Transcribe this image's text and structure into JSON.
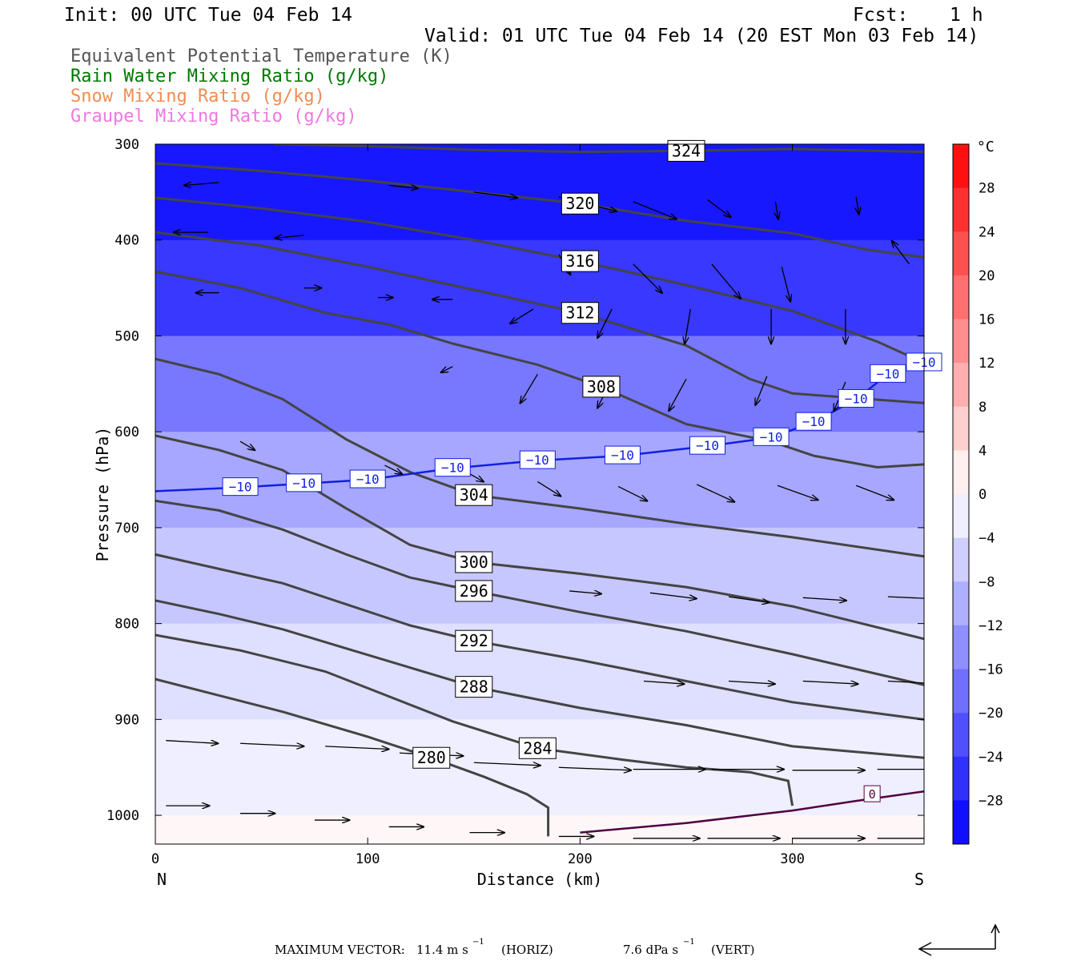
{
  "header": {
    "init": "Init: 00 UTC Tue 04 Feb 14",
    "fcst_label": "Fcst:",
    "fcst_value": "1 h",
    "valid": "Valid: 01 UTC Tue 04 Feb 14 (20 EST Mon 03 Feb 14)"
  },
  "legend": {
    "items": [
      {
        "label": "Equivalent Potential Temperature (K)",
        "color": "#555555"
      },
      {
        "label": "Rain Water Mixing Ratio (g/kg)",
        "color": "#007a00"
      },
      {
        "label": "Snow Mixing Ratio (g/kg)",
        "color": "#f08c50"
      },
      {
        "label": "Graupel Mixing Ratio (g/kg)",
        "color": "#f078e0"
      }
    ]
  },
  "chart_data": {
    "type": "cross-section",
    "xlabel": "Distance (km)",
    "ylabel": "Pressure (hPa)",
    "xlim": [
      0,
      362
    ],
    "ylim": [
      300,
      1030
    ],
    "x_ticks": [
      0,
      100,
      200,
      300
    ],
    "y_ticks": [
      300,
      400,
      500,
      600,
      700,
      800,
      900,
      1000
    ],
    "x_end_labels": {
      "left": "N",
      "right": "S"
    },
    "colorbar": {
      "unit": "°C",
      "tick_labels": [
        "28",
        "24",
        "20",
        "16",
        "12",
        "8",
        "4",
        "0",
        "−4",
        "−8",
        "−12",
        "−16",
        "−20",
        "−24",
        "−28"
      ],
      "range": [
        -32,
        32
      ],
      "step": 4
    },
    "theta_e_contours": [
      {
        "label": "324",
        "points": [
          [
            56,
            300
          ],
          [
            100,
            302
          ],
          [
            150,
            306
          ],
          [
            200,
            308
          ],
          [
            250,
            307
          ],
          [
            300,
            305
          ],
          [
            340,
            307
          ],
          [
            362,
            308
          ]
        ]
      },
      {
        "label": "320",
        "points": [
          [
            0,
            320
          ],
          [
            50,
            328
          ],
          [
            100,
            338
          ],
          [
            150,
            350
          ],
          [
            200,
            362
          ],
          [
            250,
            380
          ],
          [
            300,
            393
          ],
          [
            335,
            410
          ],
          [
            362,
            418
          ]
        ]
      },
      {
        "label": "316",
        "points": [
          [
            0,
            356
          ],
          [
            50,
            367
          ],
          [
            100,
            381
          ],
          [
            150,
            400
          ],
          [
            200,
            422
          ],
          [
            250,
            447
          ],
          [
            300,
            474
          ],
          [
            340,
            506
          ],
          [
            362,
            528
          ]
        ]
      },
      {
        "label": "312",
        "points": [
          [
            0,
            392
          ],
          [
            50,
            406
          ],
          [
            100,
            428
          ],
          [
            150,
            452
          ],
          [
            200,
            476
          ],
          [
            250,
            510
          ],
          [
            280,
            545
          ],
          [
            300,
            560
          ],
          [
            362,
            570
          ]
        ]
      },
      {
        "label": "308",
        "points": [
          [
            0,
            433
          ],
          [
            40,
            450
          ],
          [
            80,
            476
          ],
          [
            110,
            488
          ],
          [
            140,
            508
          ],
          [
            180,
            530
          ],
          [
            210,
            553
          ],
          [
            250,
            592
          ],
          [
            290,
            610
          ],
          [
            310,
            625
          ],
          [
            340,
            637
          ],
          [
            362,
            634
          ]
        ]
      },
      {
        "label": "304",
        "points": [
          [
            0,
            524
          ],
          [
            30,
            540
          ],
          [
            60,
            566
          ],
          [
            90,
            608
          ],
          [
            120,
            642
          ],
          [
            150,
            666
          ],
          [
            200,
            680
          ],
          [
            250,
            696
          ],
          [
            300,
            710
          ],
          [
            362,
            730
          ]
        ]
      },
      {
        "label": "300",
        "points": [
          [
            0,
            604
          ],
          [
            30,
            619
          ],
          [
            60,
            640
          ],
          [
            90,
            680
          ],
          [
            120,
            718
          ],
          [
            150,
            736
          ],
          [
            200,
            748
          ],
          [
            250,
            762
          ],
          [
            300,
            782
          ],
          [
            362,
            816
          ]
        ]
      },
      {
        "label": "296",
        "points": [
          [
            0,
            672
          ],
          [
            30,
            682
          ],
          [
            60,
            702
          ],
          [
            90,
            728
          ],
          [
            120,
            752
          ],
          [
            150,
            766
          ],
          [
            200,
            788
          ],
          [
            250,
            808
          ],
          [
            300,
            832
          ],
          [
            362,
            864
          ]
        ]
      },
      {
        "label": "292",
        "points": [
          [
            0,
            728
          ],
          [
            30,
            743
          ],
          [
            60,
            758
          ],
          [
            90,
            780
          ],
          [
            120,
            802
          ],
          [
            150,
            818
          ],
          [
            200,
            838
          ],
          [
            250,
            860
          ],
          [
            300,
            882
          ],
          [
            362,
            900
          ]
        ]
      },
      {
        "label": "288",
        "points": [
          [
            0,
            776
          ],
          [
            30,
            790
          ],
          [
            60,
            806
          ],
          [
            90,
            826
          ],
          [
            120,
            846
          ],
          [
            150,
            866
          ],
          [
            200,
            888
          ],
          [
            250,
            906
          ],
          [
            300,
            928
          ],
          [
            362,
            940
          ]
        ]
      },
      {
        "label": "284",
        "points": [
          [
            0,
            812
          ],
          [
            40,
            828
          ],
          [
            80,
            850
          ],
          [
            110,
            876
          ],
          [
            140,
            902
          ],
          [
            180,
            930
          ],
          [
            220,
            942
          ],
          [
            250,
            950
          ],
          [
            280,
            955
          ],
          [
            298,
            964
          ],
          [
            300,
            990
          ]
        ]
      },
      {
        "label": "280",
        "points": [
          [
            0,
            858
          ],
          [
            30,
            875
          ],
          [
            60,
            892
          ],
          [
            100,
            918
          ],
          [
            130,
            940
          ],
          [
            155,
            960
          ],
          [
            175,
            978
          ],
          [
            185,
            992
          ],
          [
            185,
            1022
          ]
        ]
      }
    ],
    "isotherm_minus10": {
      "label": "−10",
      "points": [
        [
          0,
          662
        ],
        [
          40,
          658
        ],
        [
          70,
          654
        ],
        [
          100,
          650
        ],
        [
          140,
          638
        ],
        [
          180,
          630
        ],
        [
          220,
          625
        ],
        [
          260,
          615
        ],
        [
          290,
          606
        ],
        [
          310,
          590
        ],
        [
          330,
          566
        ],
        [
          345,
          540
        ],
        [
          362,
          528
        ]
      ]
    },
    "isotherm_zero": {
      "label": "0",
      "points": [
        [
          200,
          1018
        ],
        [
          250,
          1008
        ],
        [
          300,
          995
        ],
        [
          330,
          985
        ],
        [
          362,
          975
        ]
      ]
    },
    "temperature_bands_c": [
      {
        "p_top": 300,
        "p_bottom": 400,
        "t_c": -29
      },
      {
        "p_top": 400,
        "p_bottom": 500,
        "t_c": -25
      },
      {
        "p_top": 500,
        "p_bottom": 600,
        "t_c": -17
      },
      {
        "p_top": 600,
        "p_bottom": 700,
        "t_c": -11
      },
      {
        "p_top": 700,
        "p_bottom": 800,
        "t_c": -7
      },
      {
        "p_top": 800,
        "p_bottom": 900,
        "t_c": -4
      },
      {
        "p_top": 900,
        "p_bottom": 1000,
        "t_c": -2
      },
      {
        "p_top": 1000,
        "p_bottom": 1030,
        "t_c": 1
      }
    ],
    "wind_vectors": [
      {
        "x": 30,
        "p": 340,
        "u": -1.2,
        "v": 0.1
      },
      {
        "x": 110,
        "p": 343,
        "u": 1.0,
        "v": 0.1
      },
      {
        "x": 150,
        "p": 350,
        "u": 1.5,
        "v": 0.2
      },
      {
        "x": 190,
        "p": 355,
        "u": 2.0,
        "v": 0.5
      },
      {
        "x": 225,
        "p": 360,
        "u": 1.5,
        "v": 0.6
      },
      {
        "x": 260,
        "p": 358,
        "u": 0.8,
        "v": 0.6
      },
      {
        "x": 292,
        "p": 360,
        "u": 0.1,
        "v": 0.6
      },
      {
        "x": 330,
        "p": 355,
        "u": 0.1,
        "v": 0.6
      },
      {
        "x": 25,
        "p": 392,
        "u": -1.2,
        "v": 0.0
      },
      {
        "x": 70,
        "p": 395,
        "u": -1.0,
        "v": 0.1
      },
      {
        "x": 190,
        "p": 415,
        "u": 0.4,
        "v": 0.7
      },
      {
        "x": 225,
        "p": 425,
        "u": 1.0,
        "v": 1.0
      },
      {
        "x": 262,
        "p": 425,
        "u": 1.0,
        "v": 1.2
      },
      {
        "x": 295,
        "p": 428,
        "u": 0.3,
        "v": 1.2
      },
      {
        "x": 355,
        "p": 425,
        "u": -0.6,
        "v": -0.8
      },
      {
        "x": 30,
        "p": 455,
        "u": -0.8,
        "v": 0.0
      },
      {
        "x": 70,
        "p": 450,
        "u": 0.6,
        "v": 0.0
      },
      {
        "x": 105,
        "p": 460,
        "u": 0.5,
        "v": 0.0
      },
      {
        "x": 140,
        "p": 462,
        "u": -0.7,
        "v": 0.0
      },
      {
        "x": 178,
        "p": 472,
        "u": -0.8,
        "v": 0.5
      },
      {
        "x": 215,
        "p": 472,
        "u": -0.5,
        "v": 1.0
      },
      {
        "x": 252,
        "p": 472,
        "u": -0.2,
        "v": 1.2
      },
      {
        "x": 290,
        "p": 472,
        "u": 0.0,
        "v": 1.2
      },
      {
        "x": 325,
        "p": 472,
        "u": 0.0,
        "v": 1.2
      },
      {
        "x": 180,
        "p": 540,
        "u": -0.6,
        "v": 1.0
      },
      {
        "x": 215,
        "p": 545,
        "u": -0.5,
        "v": 1.0
      },
      {
        "x": 250,
        "p": 545,
        "u": -0.6,
        "v": 1.1
      },
      {
        "x": 288,
        "p": 542,
        "u": -0.4,
        "v": 1.0
      },
      {
        "x": 325,
        "p": 548,
        "u": -0.4,
        "v": 1.0
      },
      {
        "x": 140,
        "p": 532,
        "u": -0.4,
        "v": 0.2
      },
      {
        "x": 40,
        "p": 610,
        "u": 0.5,
        "v": 0.3
      },
      {
        "x": 108,
        "p": 635,
        "u": 0.6,
        "v": 0.3
      },
      {
        "x": 145,
        "p": 640,
        "u": 0.7,
        "v": 0.4
      },
      {
        "x": 180,
        "p": 652,
        "u": 0.8,
        "v": 0.5
      },
      {
        "x": 218,
        "p": 657,
        "u": 1.0,
        "v": 0.5
      },
      {
        "x": 255,
        "p": 655,
        "u": 1.3,
        "v": 0.6
      },
      {
        "x": 293,
        "p": 656,
        "u": 1.4,
        "v": 0.5
      },
      {
        "x": 330,
        "p": 656,
        "u": 1.3,
        "v": 0.5
      },
      {
        "x": 270,
        "p": 772,
        "u": 1.4,
        "v": 0.2
      },
      {
        "x": 233,
        "p": 768,
        "u": 1.6,
        "v": 0.2
      },
      {
        "x": 195,
        "p": 766,
        "u": 1.1,
        "v": 0.1
      },
      {
        "x": 305,
        "p": 773,
        "u": 1.5,
        "v": 0.1
      },
      {
        "x": 345,
        "p": 772,
        "u": 2.2,
        "v": 0.1
      },
      {
        "x": 230,
        "p": 860,
        "u": 1.4,
        "v": 0.1
      },
      {
        "x": 270,
        "p": 860,
        "u": 1.6,
        "v": 0.1
      },
      {
        "x": 305,
        "p": 860,
        "u": 1.9,
        "v": 0.1
      },
      {
        "x": 345,
        "p": 860,
        "u": 1.9,
        "v": 0.1
      },
      {
        "x": 5,
        "p": 922,
        "u": 1.8,
        "v": 0.1
      },
      {
        "x": 40,
        "p": 925,
        "u": 2.2,
        "v": 0.1
      },
      {
        "x": 80,
        "p": 928,
        "u": 2.2,
        "v": 0.1
      },
      {
        "x": 115,
        "p": 935,
        "u": 2.2,
        "v": 0.1
      },
      {
        "x": 150,
        "p": 945,
        "u": 2.3,
        "v": 0.1
      },
      {
        "x": 190,
        "p": 950,
        "u": 2.5,
        "v": 0.1
      },
      {
        "x": 225,
        "p": 952,
        "u": 2.5,
        "v": 0.0
      },
      {
        "x": 262,
        "p": 952,
        "u": 2.5,
        "v": 0.0
      },
      {
        "x": 300,
        "p": 953,
        "u": 2.5,
        "v": 0.0
      },
      {
        "x": 340,
        "p": 952,
        "u": 2.5,
        "v": 0.0
      },
      {
        "x": 5,
        "p": 990,
        "u": 1.5,
        "v": 0.0
      },
      {
        "x": 40,
        "p": 998,
        "u": 1.2,
        "v": 0.0
      },
      {
        "x": 75,
        "p": 1005,
        "u": 1.2,
        "v": 0.0
      },
      {
        "x": 110,
        "p": 1012,
        "u": 1.2,
        "v": 0.0
      },
      {
        "x": 148,
        "p": 1018,
        "u": 1.2,
        "v": 0.0
      },
      {
        "x": 190,
        "p": 1022,
        "u": 1.2,
        "v": 0.0
      },
      {
        "x": 225,
        "p": 1024,
        "u": 2.3,
        "v": 0.0
      },
      {
        "x": 260,
        "p": 1024,
        "u": 2.5,
        "v": 0.0
      },
      {
        "x": 300,
        "p": 1024,
        "u": 2.5,
        "v": 0.0
      },
      {
        "x": 340,
        "p": 1024,
        "u": 2.5,
        "v": 0.0
      }
    ]
  },
  "footer": {
    "max_vector_label": "MAXIMUM VECTOR:",
    "horiz_value": "11.4 m s",
    "horiz_unit": "(HORIZ)",
    "vert_value": "7.6 dPa s",
    "vert_unit": "(VERT)",
    "exp": "−1"
  }
}
